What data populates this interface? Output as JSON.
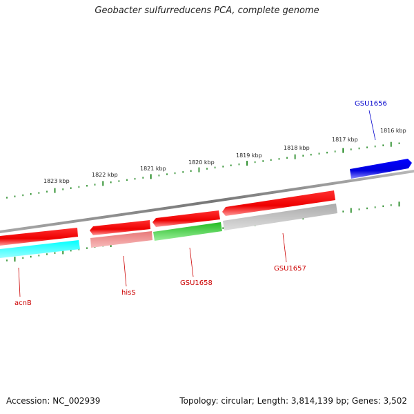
{
  "title": "Geobacter sulfurreducens PCA, complete genome",
  "accession": "Accession: NC_002939",
  "summary": "Topology: circular; Length: 3,814,139 bp; Genes: 3,502",
  "colors": {
    "backbone": "#888888",
    "tick": "#007700",
    "label_red": "#cc0000",
    "label_blue": "#0000cc"
  },
  "kbp_labels": [
    "1823 kbp",
    "1822 kbp",
    "1821 kbp",
    "1820 kbp",
    "1819 kbp",
    "1818 kbp",
    "1817 kbp",
    "1816 kbp"
  ],
  "genes": [
    {
      "name": "acnB",
      "color": "#ff0000"
    },
    {
      "name": "",
      "color": "#00ffff"
    },
    {
      "name": "hisS",
      "color": "#ff0000"
    },
    {
      "name": "",
      "color": "#ee8888"
    },
    {
      "name": "GSU1658",
      "color": "#ff0000"
    },
    {
      "name": "",
      "color": "#33cc33"
    },
    {
      "name": "GSU1657",
      "color": "#ff0000"
    },
    {
      "name": "",
      "color": "#bbbbbb"
    },
    {
      "name": "GSU1656",
      "color": "#0000ee"
    }
  ]
}
